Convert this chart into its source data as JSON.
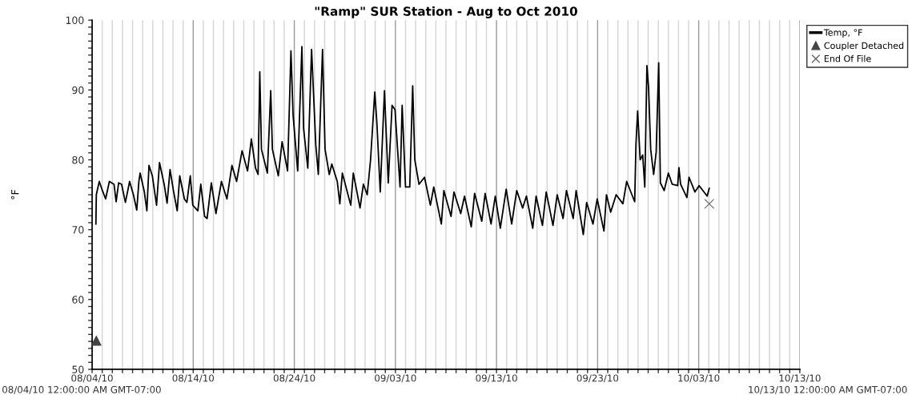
{
  "chart_data": {
    "type": "line",
    "title": "\"Ramp\" SUR Station - Aug to Oct 2010",
    "ylabel": "°F",
    "annotations": [
      "08/04/10 12:00:00 AM GMT-07:00",
      "10/13/10 12:00:00 AM GMT-07:00"
    ],
    "xlim": [
      "2010-08-04",
      "2010-10-13"
    ],
    "ylim": [
      50,
      100
    ],
    "xticks": [
      {
        "value": "2010-08-04",
        "label": "08/04/10"
      },
      {
        "value": "2010-08-05",
        "label": null
      },
      {
        "value": "2010-08-06",
        "label": null
      },
      {
        "value": "2010-08-07",
        "label": null
      },
      {
        "value": "2010-08-08",
        "label": null
      },
      {
        "value": "2010-08-09",
        "label": null
      },
      {
        "value": "2010-08-10",
        "label": null
      },
      {
        "value": "2010-08-11",
        "label": null
      },
      {
        "value": "2010-08-12",
        "label": null
      },
      {
        "value": "2010-08-13",
        "label": null
      },
      {
        "value": "2010-08-14",
        "label": "08/14/10"
      },
      {
        "value": "2010-08-15",
        "label": null
      },
      {
        "value": "2010-08-16",
        "label": null
      },
      {
        "value": "2010-08-17",
        "label": null
      },
      {
        "value": "2010-08-18",
        "label": null
      },
      {
        "value": "2010-08-19",
        "label": null
      },
      {
        "value": "2010-08-20",
        "label": null
      },
      {
        "value": "2010-08-21",
        "label": null
      },
      {
        "value": "2010-08-22",
        "label": null
      },
      {
        "value": "2010-08-23",
        "label": null
      },
      {
        "value": "2010-08-24",
        "label": "08/24/10"
      },
      {
        "value": "2010-08-25",
        "label": null
      },
      {
        "value": "2010-08-26",
        "label": null
      },
      {
        "value": "2010-08-27",
        "label": null
      },
      {
        "value": "2010-08-28",
        "label": null
      },
      {
        "value": "2010-08-29",
        "label": null
      },
      {
        "value": "2010-08-30",
        "label": null
      },
      {
        "value": "2010-08-31",
        "label": null
      },
      {
        "value": "2010-09-01",
        "label": null
      },
      {
        "value": "2010-09-02",
        "label": null
      },
      {
        "value": "2010-09-03",
        "label": "09/03/10"
      },
      {
        "value": "2010-09-04",
        "label": null
      },
      {
        "value": "2010-09-05",
        "label": null
      },
      {
        "value": "2010-09-06",
        "label": null
      },
      {
        "value": "2010-09-07",
        "label": null
      },
      {
        "value": "2010-09-08",
        "label": null
      },
      {
        "value": "2010-09-09",
        "label": null
      },
      {
        "value": "2010-09-10",
        "label": null
      },
      {
        "value": "2010-09-11",
        "label": null
      },
      {
        "value": "2010-09-12",
        "label": null
      },
      {
        "value": "2010-09-13",
        "label": "09/13/10"
      },
      {
        "value": "2010-09-14",
        "label": null
      },
      {
        "value": "2010-09-15",
        "label": null
      },
      {
        "value": "2010-09-16",
        "label": null
      },
      {
        "value": "2010-09-17",
        "label": null
      },
      {
        "value": "2010-09-18",
        "label": null
      },
      {
        "value": "2010-09-19",
        "label": null
      },
      {
        "value": "2010-09-20",
        "label": null
      },
      {
        "value": "2010-09-21",
        "label": null
      },
      {
        "value": "2010-09-22",
        "label": null
      },
      {
        "value": "2010-09-23",
        "label": "09/23/10"
      },
      {
        "value": "2010-09-24",
        "label": null
      },
      {
        "value": "2010-09-25",
        "label": null
      },
      {
        "value": "2010-09-26",
        "label": null
      },
      {
        "value": "2010-09-27",
        "label": null
      },
      {
        "value": "2010-09-28",
        "label": null
      },
      {
        "value": "2010-09-29",
        "label": null
      },
      {
        "value": "2010-09-30",
        "label": null
      },
      {
        "value": "2010-10-01",
        "label": null
      },
      {
        "value": "2010-10-02",
        "label": null
      },
      {
        "value": "2010-10-03",
        "label": "10/03/10"
      },
      {
        "value": "2010-10-04",
        "label": null
      },
      {
        "value": "2010-10-05",
        "label": null
      },
      {
        "value": "2010-10-06",
        "label": null
      },
      {
        "value": "2010-10-07",
        "label": null
      },
      {
        "value": "2010-10-08",
        "label": null
      },
      {
        "value": "2010-10-09",
        "label": null
      },
      {
        "value": "2010-10-10",
        "label": null
      },
      {
        "value": "2010-10-11",
        "label": null
      },
      {
        "value": "2010-10-12",
        "label": null
      },
      {
        "value": "2010-10-13",
        "label": "10/13/10"
      }
    ],
    "yticks": [
      50,
      {
        "value": 51,
        "label": null
      },
      {
        "value": 52,
        "label": null
      },
      {
        "value": 53,
        "label": null
      },
      {
        "value": 54,
        "label": null
      },
      {
        "value": 55,
        "label": null
      },
      {
        "value": 56,
        "label": null
      },
      {
        "value": 57,
        "label": null
      },
      {
        "value": 58,
        "label": null
      },
      {
        "value": 59,
        "label": null
      },
      60,
      {
        "value": 61,
        "label": null
      },
      {
        "value": 62,
        "label": null
      },
      {
        "value": 63,
        "label": null
      },
      {
        "value": 64,
        "label": null
      },
      {
        "value": 65,
        "label": null
      },
      {
        "value": 66,
        "label": null
      },
      {
        "value": 67,
        "label": null
      },
      {
        "value": 68,
        "label": null
      },
      {
        "value": 69,
        "label": null
      },
      70,
      {
        "value": 71,
        "label": null
      },
      {
        "value": 72,
        "label": null
      },
      {
        "value": 73,
        "label": null
      },
      {
        "value": 74,
        "label": null
      },
      {
        "value": 75,
        "label": null
      },
      {
        "value": 76,
        "label": null
      },
      {
        "value": 77,
        "label": null
      },
      {
        "value": 78,
        "label": null
      },
      {
        "value": 79,
        "label": null
      },
      80,
      {
        "value": 81,
        "label": null
      },
      {
        "value": 82,
        "label": null
      },
      {
        "value": 83,
        "label": null
      },
      {
        "value": 84,
        "label": null
      },
      {
        "value": 85,
        "label": null
      },
      {
        "value": 86,
        "label": null
      },
      {
        "value": 87,
        "label": null
      },
      {
        "value": 88,
        "label": null
      },
      {
        "value": 89,
        "label": null
      },
      90,
      {
        "value": 91,
        "label": null
      },
      {
        "value": 92,
        "label": null
      },
      {
        "value": 93,
        "label": null
      },
      {
        "value": 94,
        "label": null
      },
      {
        "value": 95,
        "label": null
      },
      {
        "value": 96,
        "label": null
      },
      {
        "value": 97,
        "label": null
      },
      {
        "value": 98,
        "label": null
      },
      {
        "value": 99,
        "label": null
      },
      100
    ],
    "grid": "x",
    "legend": "top right",
    "series": [
      {
        "name": "Temp, °F",
        "color": "#000000",
        "marker": "none",
        "line_style": "solid",
        "x": [
          "2010-08-04T09:00",
          "2010-08-04T10:00",
          "2010-08-04T17:00",
          "2010-08-05T01:00",
          "2010-08-05T08:00",
          "2010-08-05T17:00",
          "2010-08-06T04:00",
          "2010-08-06T09:00",
          "2010-08-06T15:00",
          "2010-08-06T22:00",
          "2010-08-07T07:00",
          "2010-08-07T17:00",
          "2010-08-08T02:00",
          "2010-08-08T10:00",
          "2010-08-08T15:00",
          "2010-08-08T18:00",
          "2010-08-09T04:00",
          "2010-08-09T10:00",
          "2010-08-09T15:00",
          "2010-08-09T23:00",
          "2010-08-10T09:00",
          "2010-08-10T16:00",
          "2010-08-11T03:00",
          "2010-08-11T10:00",
          "2010-08-11T17:00",
          "2010-08-12T01:00",
          "2010-08-12T10:00",
          "2010-08-12T16:00",
          "2010-08-13T03:00",
          "2010-08-13T09:00",
          "2010-08-13T17:00",
          "2010-08-13T23:00",
          "2010-08-14T11:00",
          "2010-08-14T18:00",
          "2010-08-15T03:00",
          "2010-08-15T09:00",
          "2010-08-15T19:00",
          "2010-08-16T06:00",
          "2010-08-16T19:00",
          "2010-08-17T08:00",
          "2010-08-17T20:00",
          "2010-08-18T07:00",
          "2010-08-18T20:00",
          "2010-08-19T09:00",
          "2010-08-19T18:00",
          "2010-08-20T04:00",
          "2010-08-20T10:00",
          "2010-08-20T14:00",
          "2010-08-20T18:00",
          "2010-08-21T08:00",
          "2010-08-21T16:00",
          "2010-08-21T20:00",
          "2010-08-22T10:00",
          "2010-08-22T19:00",
          "2010-08-23T08:00",
          "2010-08-23T16:00",
          "2010-08-23T21:00",
          "2010-08-24T08:00",
          "2010-08-24T18:00",
          "2010-08-24T22:00",
          "2010-08-25T08:00",
          "2010-08-25T17:00",
          "2010-08-26T03:00",
          "2010-08-26T09:00",
          "2010-08-26T19:00",
          "2010-08-27T01:00",
          "2010-08-27T11:00",
          "2010-08-27T17:00",
          "2010-08-28T06:00",
          "2010-08-28T12:00",
          "2010-08-28T18:00",
          "2010-08-29T14:00",
          "2010-08-29T20:00",
          "2010-08-30T12:00",
          "2010-08-30T20:00",
          "2010-08-31T05:00",
          "2010-08-31T13:00",
          "2010-08-31T23:00",
          "2010-09-01T04:00",
          "2010-09-01T12:00",
          "2010-09-01T22:00",
          "2010-09-02T07:00",
          "2010-09-02T16:00",
          "2010-09-02T23:00",
          "2010-09-03T11:00",
          "2010-09-03T16:00",
          "2010-09-04T00:00",
          "2010-09-04T10:00",
          "2010-09-04T17:00",
          "2010-09-04T22:00",
          "2010-09-05T08:00",
          "2010-09-05T21:00",
          "2010-09-06T11:00",
          "2010-09-06T19:00",
          "2010-09-07T13:00",
          "2010-09-07T19:00",
          "2010-09-08T12:00",
          "2010-09-08T19:00",
          "2010-09-09T11:00",
          "2010-09-09T20:00",
          "2010-09-10T12:00",
          "2010-09-10T20:00",
          "2010-09-11T13:00",
          "2010-09-11T21:00",
          "2010-09-12T11:00",
          "2010-09-12T21:00",
          "2010-09-13T09:00",
          "2010-09-13T23:00",
          "2010-09-14T12:00",
          "2010-09-15T00:00",
          "2010-09-15T14:00",
          "2010-09-15T23:00",
          "2010-09-16T14:00",
          "2010-09-16T22:00",
          "2010-09-17T13:00",
          "2010-09-17T22:00",
          "2010-09-18T14:00",
          "2010-09-19T00:00",
          "2010-09-19T14:00",
          "2010-09-19T22:00",
          "2010-09-20T14:00",
          "2010-09-20T21:00",
          "2010-09-21T14:00",
          "2010-09-21T22:00",
          "2010-09-22T13:00",
          "2010-09-22T23:00",
          "2010-09-23T15:00",
          "2010-09-23T21:00",
          "2010-09-24T07:00",
          "2010-09-24T20:00",
          "2010-09-25T12:00",
          "2010-09-25T21:00",
          "2010-09-26T16:00",
          "2010-09-26T19:00",
          "2010-09-26T23:00",
          "2010-09-27T05:00",
          "2010-09-27T11:00",
          "2010-09-27T16:00",
          "2010-09-27T21:00",
          "2010-09-28T01:00",
          "2010-09-28T06:00",
          "2010-09-28T13:00",
          "2010-09-28T19:00",
          "2010-09-29T01:00",
          "2010-09-29T05:00",
          "2010-09-29T14:00",
          "2010-09-30T00:00",
          "2010-09-30T09:00",
          "2010-09-30T22:00",
          "2010-10-01T01:00",
          "2010-10-01T05:00",
          "2010-10-01T20:00",
          "2010-10-02T01:00",
          "2010-10-02T15:00",
          "2010-10-03T01:00",
          "2010-10-03T20:00",
          "2010-10-04T01:00"
        ],
        "values": [
          70.8,
          75.0,
          76.9,
          75.5,
          74.4,
          76.9,
          76.5,
          74.0,
          76.7,
          76.5,
          73.9,
          76.9,
          75.0,
          72.8,
          76.9,
          78.1,
          75.4,
          72.7,
          79.2,
          77.7,
          73.5,
          79.6,
          76.5,
          73.8,
          78.6,
          75.6,
          72.7,
          77.7,
          74.4,
          73.9,
          77.7,
          73.5,
          72.7,
          76.5,
          71.9,
          71.6,
          76.7,
          72.3,
          76.9,
          74.4,
          79.2,
          76.9,
          81.3,
          78.4,
          83.0,
          78.8,
          77.9,
          92.6,
          81.5,
          78.1,
          89.9,
          81.5,
          77.7,
          82.6,
          78.4,
          95.6,
          86.5,
          78.4,
          96.2,
          84.5,
          78.8,
          95.8,
          82.1,
          77.9,
          95.8,
          81.5,
          77.9,
          79.4,
          76.9,
          73.7,
          78.1,
          73.5,
          78.1,
          73.1,
          76.5,
          75.0,
          80.0,
          89.7,
          85.3,
          75.4,
          89.9,
          76.7,
          87.8,
          87.2,
          76.1,
          87.8,
          76.1,
          76.1,
          90.6,
          80.0,
          76.5,
          77.5,
          73.5,
          76.1,
          70.8,
          75.6,
          71.9,
          75.4,
          72.3,
          74.8,
          70.4,
          75.2,
          71.2,
          75.2,
          70.8,
          74.8,
          70.2,
          75.8,
          70.8,
          75.6,
          73.1,
          74.8,
          70.2,
          74.8,
          70.6,
          75.4,
          70.6,
          75.0,
          71.6,
          75.6,
          71.6,
          75.6,
          69.3,
          73.9,
          70.8,
          74.4,
          69.8,
          75.0,
          72.5,
          75.0,
          73.7,
          76.9,
          74.0,
          82.2,
          87.0,
          80.0,
          80.7,
          76.1,
          93.5,
          90.3,
          81.5,
          77.9,
          81.1,
          93.9,
          76.7,
          75.6,
          78.1,
          76.5,
          76.3,
          78.9,
          76.5,
          74.6,
          77.5,
          75.4,
          76.3,
          74.8,
          75.9
        ]
      },
      {
        "name": "Coupler Detached",
        "type": "scatter",
        "color": "#444444",
        "marker": "triangle",
        "x": [
          "2010-08-04T10:00"
        ],
        "values": [
          54.1
        ]
      },
      {
        "name": "End Of File",
        "type": "scatter",
        "color": "#666666",
        "marker": "cross",
        "x": [
          "2010-10-04T01:00"
        ],
        "values": [
          73.7
        ]
      }
    ]
  }
}
